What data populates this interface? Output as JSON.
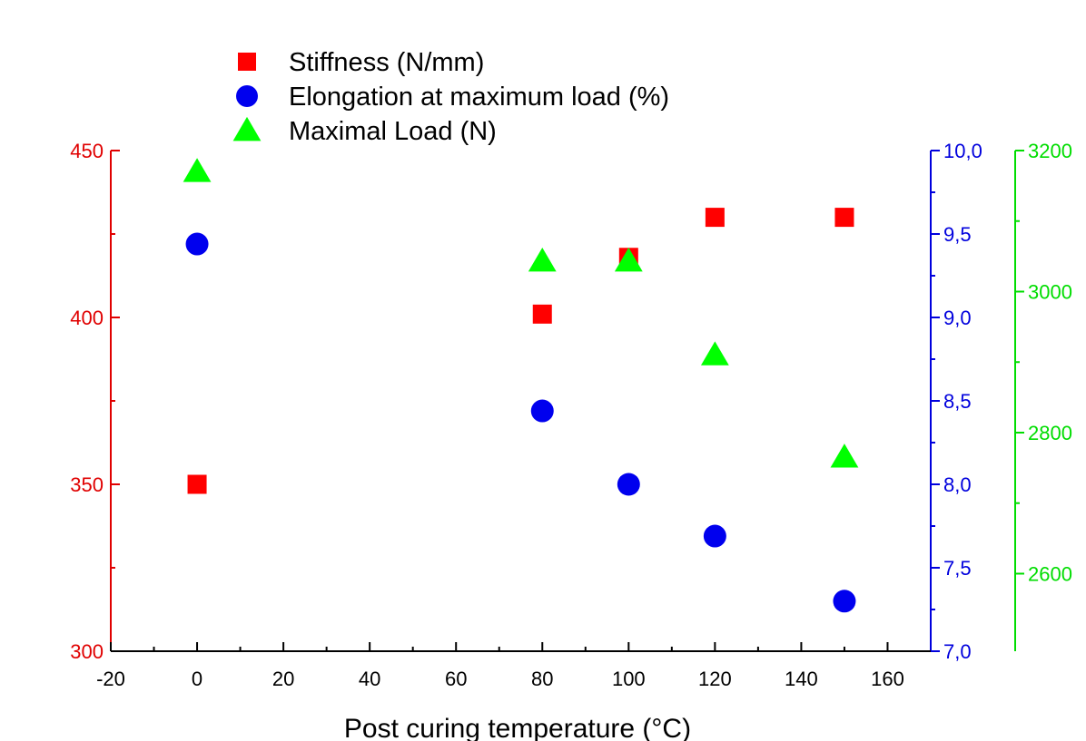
{
  "chart_data": {
    "type": "scatter",
    "title": "",
    "xlabel": "Post curing temperature (°C)",
    "xlim": [
      -20,
      170
    ],
    "x_ticks": [
      -20,
      0,
      20,
      40,
      60,
      80,
      100,
      120,
      140,
      160
    ],
    "x_tick_labels": [
      "-20",
      "0",
      "20",
      "40",
      "60",
      "80",
      "100",
      "120",
      "140",
      "160"
    ],
    "legend_position": "top-left",
    "grid": false,
    "axes": [
      {
        "id": "left",
        "color": "#e00000",
        "ylim": [
          300,
          450
        ],
        "ticks": [
          300,
          350,
          400,
          450
        ],
        "tick_labels": [
          "300",
          "350",
          "400",
          "450"
        ]
      },
      {
        "id": "right1",
        "color": "#0000dd",
        "ylim": [
          7.0,
          10.0
        ],
        "ticks": [
          7.0,
          7.5,
          8.0,
          8.5,
          9.0,
          9.5,
          10.0
        ],
        "tick_labels": [
          "7,0",
          "7,5",
          "8,0",
          "8,5",
          "9,0",
          "9,5",
          "10,0"
        ]
      },
      {
        "id": "right2",
        "color": "#00dd00",
        "ylim": [
          2490,
          3200
        ],
        "ticks": [
          2600,
          2800,
          3000,
          3200
        ],
        "tick_labels": [
          "2600",
          "2800",
          "3000",
          "3200"
        ],
        "minor_ticks": [
          2700,
          2900,
          3100
        ]
      }
    ],
    "series": [
      {
        "name": "Stiffness (N/mm)",
        "axis": "left",
        "marker": "square",
        "color": "#ff0000",
        "x": [
          0,
          80,
          100,
          120,
          150
        ],
        "y": [
          350,
          401,
          418,
          430,
          430
        ]
      },
      {
        "name": "Elongation at maximum load (%)",
        "axis": "right1",
        "marker": "circle",
        "color": "#0000ee",
        "x": [
          0,
          80,
          100,
          120,
          150
        ],
        "y": [
          9.44,
          8.44,
          8.0,
          7.69,
          7.3
        ]
      },
      {
        "name": "Maximal Load (N)",
        "axis": "right2",
        "marker": "triangle",
        "color": "#00ff00",
        "x": [
          0,
          80,
          100,
          120,
          150
        ],
        "y": [
          3170,
          3043,
          3043,
          2910,
          2765
        ]
      }
    ]
  }
}
